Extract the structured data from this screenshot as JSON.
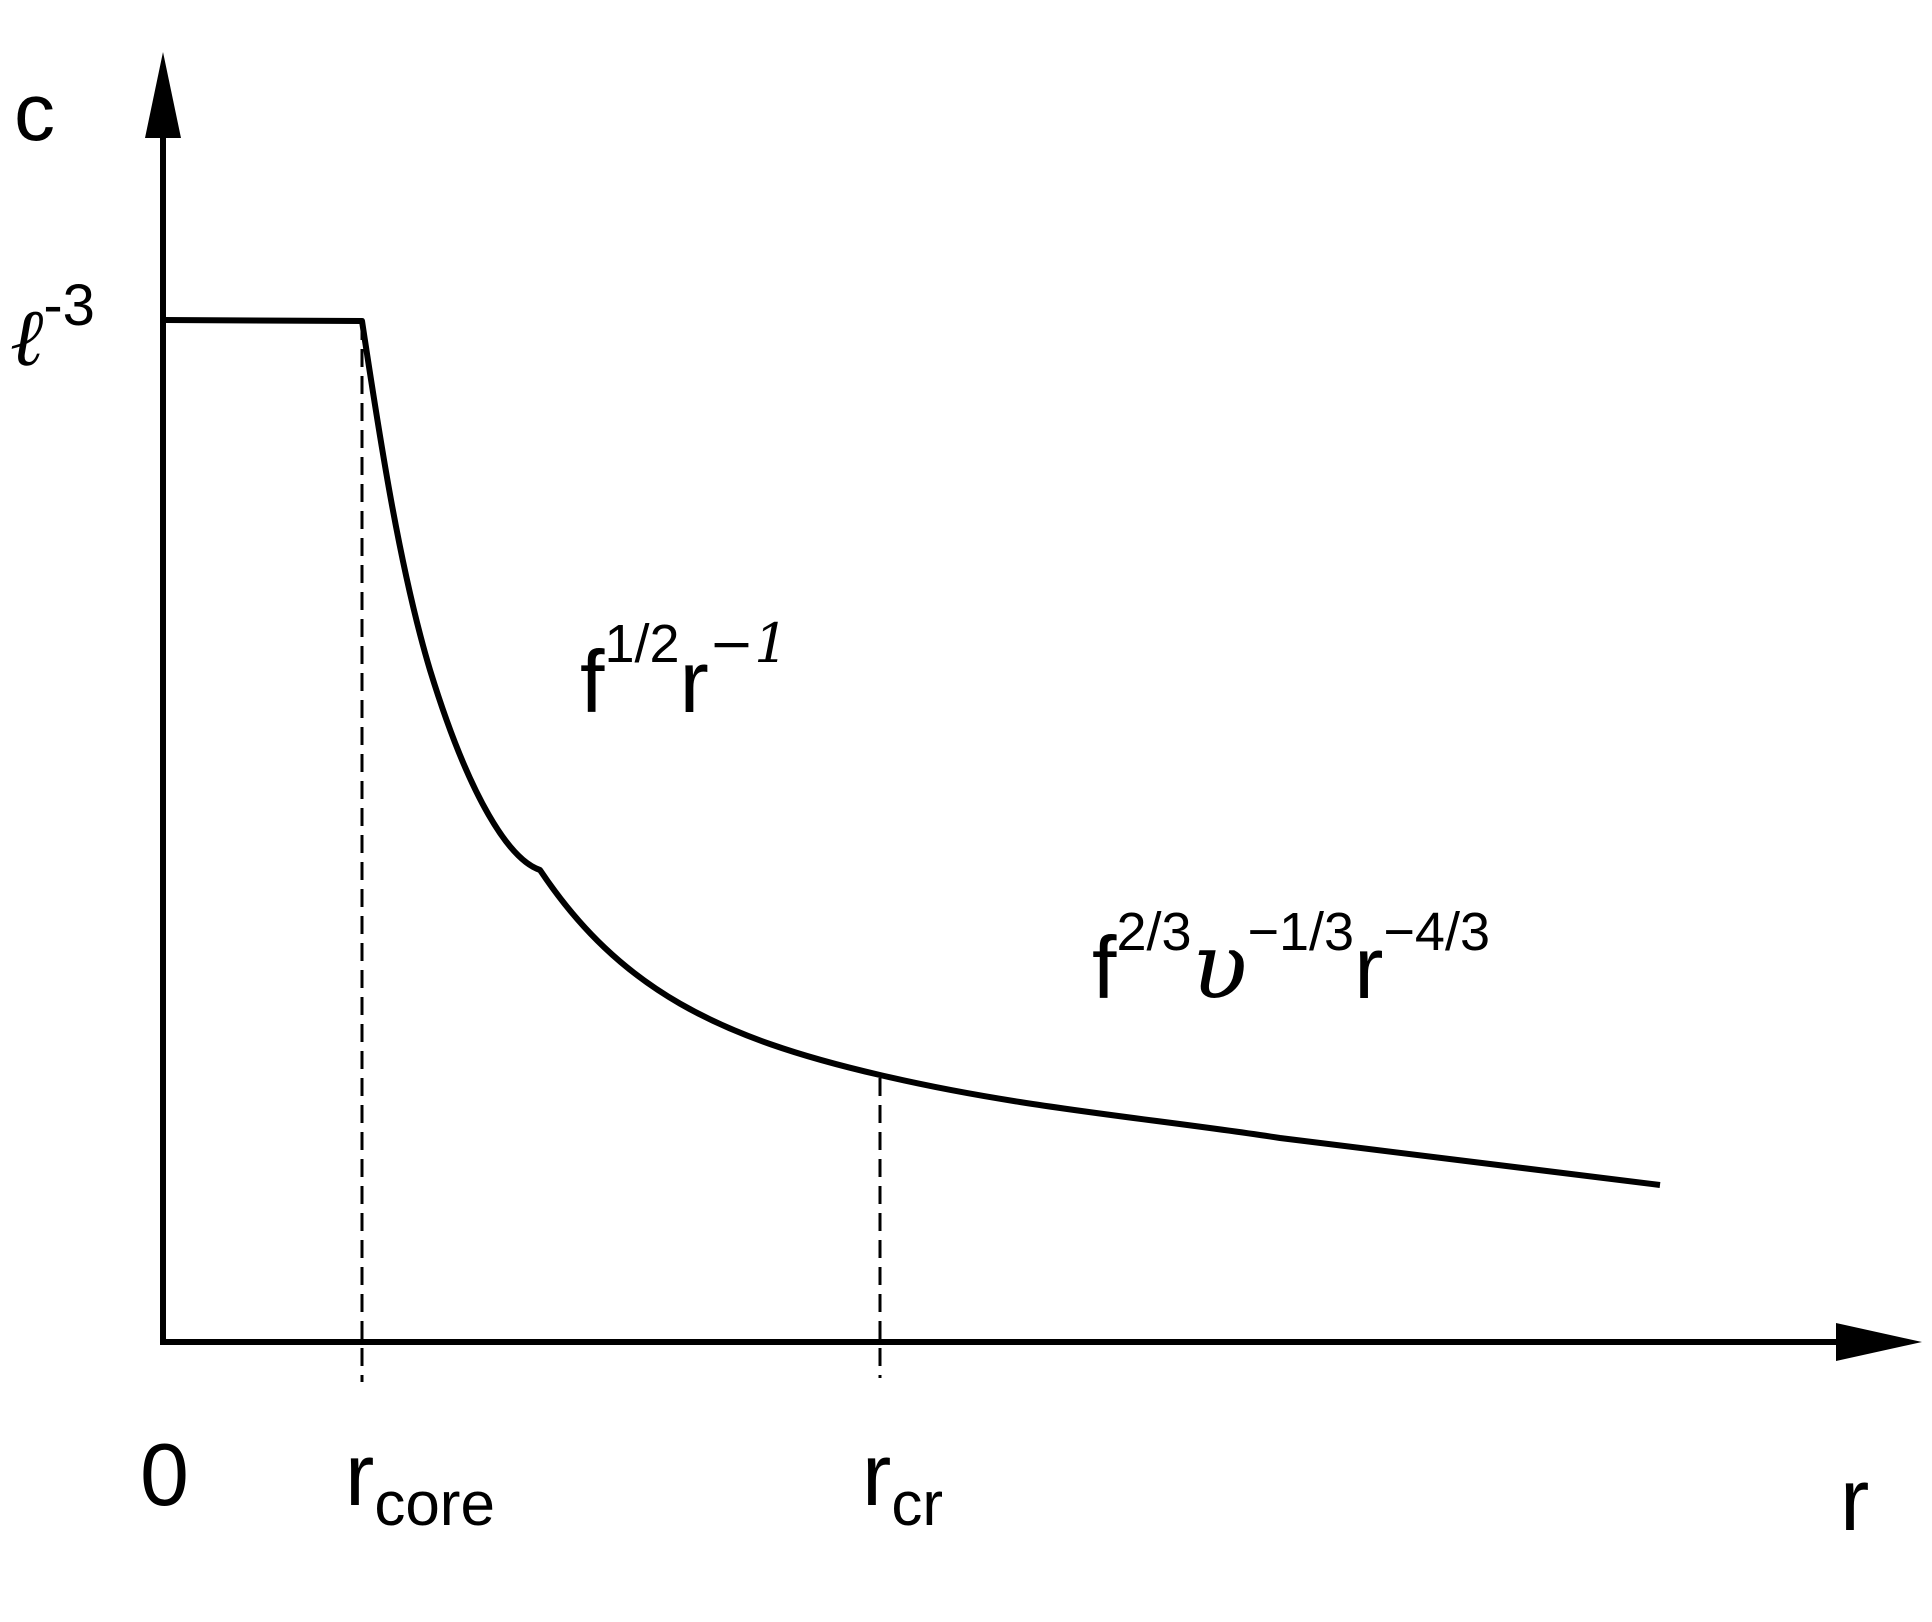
{
  "chart_data": {
    "type": "line",
    "title": "",
    "xlabel": "r",
    "ylabel": "c",
    "grid": false,
    "series": [
      {
        "x": [
          0,
          1,
          1.1,
          1.25,
          1.45,
          1.7,
          2,
          2.4,
          2.8,
          3.2,
          3.8,
          4.4,
          5.0,
          5.6,
          6.2,
          6.8,
          7.5
        ],
        "values": [
          1.0,
          1.0,
          0.9,
          0.79,
          0.68,
          0.58,
          0.48,
          0.38,
          0.31,
          0.27,
          0.23,
          0.2,
          0.175,
          0.16,
          0.145,
          0.13,
          0.16
        ]
      }
    ],
    "y_tick_label": {
      "base": "ℓ",
      "exp": "-3"
    },
    "x_tick_labels": [
      {
        "base": "0",
        "sub": ""
      },
      {
        "base": "r",
        "sub": "core"
      },
      {
        "base": "r",
        "sub": "cr"
      }
    ],
    "x_end_label": "r",
    "reference_lines": [
      "r_core",
      "r_cr"
    ],
    "annotations": {
      "regime1": {
        "f": "f",
        "e1": "1/2",
        "r": "r",
        "e2": "−1"
      },
      "regime2": {
        "f": "f",
        "e1": "2/3",
        "nu": "υ",
        "e2": "−1/3",
        "r": "r",
        "e3": "−4/3"
      }
    }
  }
}
